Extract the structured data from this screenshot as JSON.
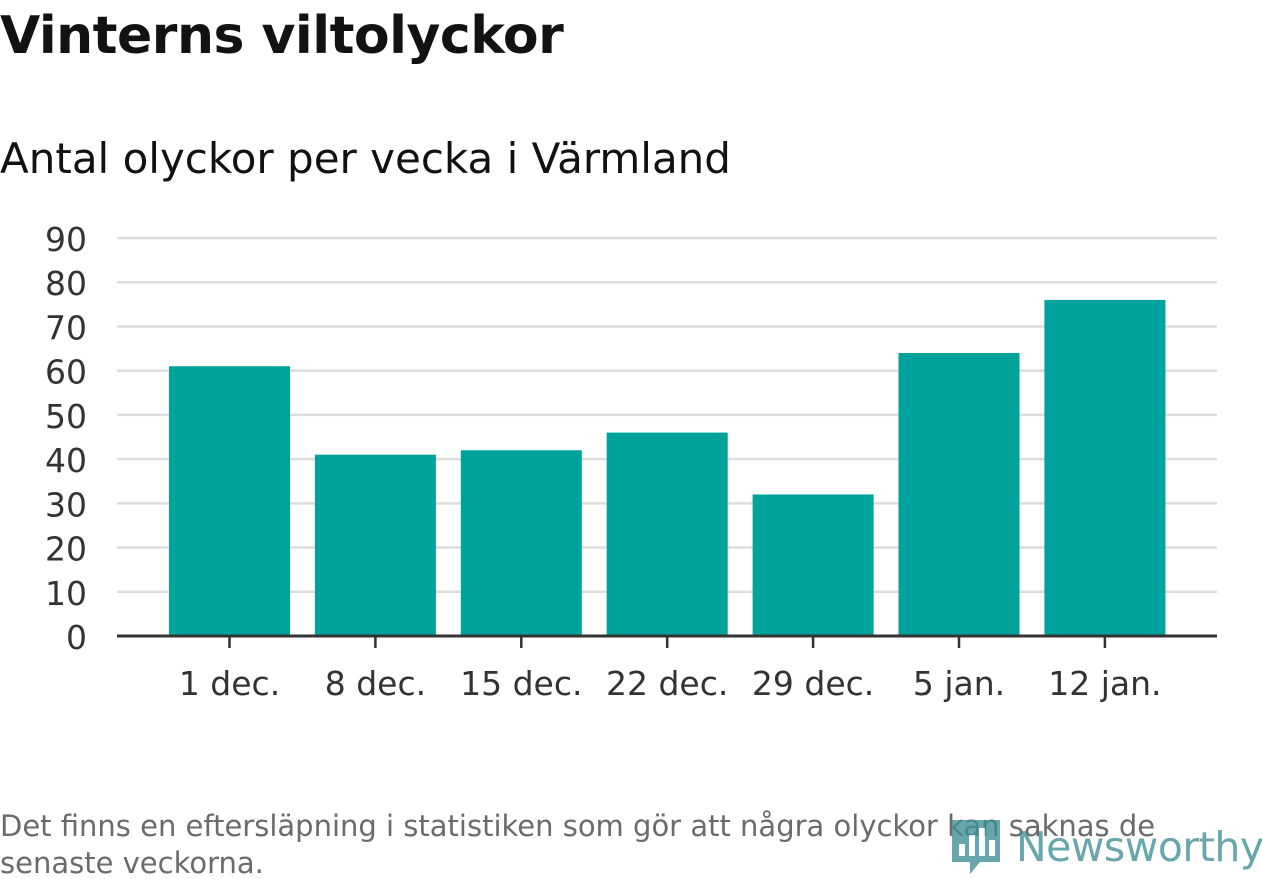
{
  "title": "Vinterns viltolyckor",
  "subtitle": "Antal olyckor per vecka i Värmland",
  "footnote": "Det finns en eftersläpning i statistiken som gör att några olyckor kan saknas de senaste veckorna.",
  "logo": {
    "text": "Newsworthy",
    "icon": "newsworthy-logo-icon"
  },
  "colors": {
    "bar": "#00a39b",
    "grid": "#dddddd",
    "axis": "#333333",
    "tick_text": "#333333"
  },
  "chart_data": {
    "type": "bar",
    "title": "Vinterns viltolyckor",
    "subtitle": "Antal olyckor per vecka i Värmland",
    "xlabel": "",
    "ylabel": "",
    "categories": [
      "1 dec.",
      "8 dec.",
      "15 dec.",
      "22 dec.",
      "29 dec.",
      "5 jan.",
      "12 jan."
    ],
    "values": [
      61,
      41,
      42,
      46,
      32,
      64,
      76
    ],
    "ylim": [
      0,
      90
    ],
    "yticks": [
      0,
      10,
      20,
      30,
      40,
      50,
      60,
      70,
      80,
      90
    ],
    "grid": true
  }
}
